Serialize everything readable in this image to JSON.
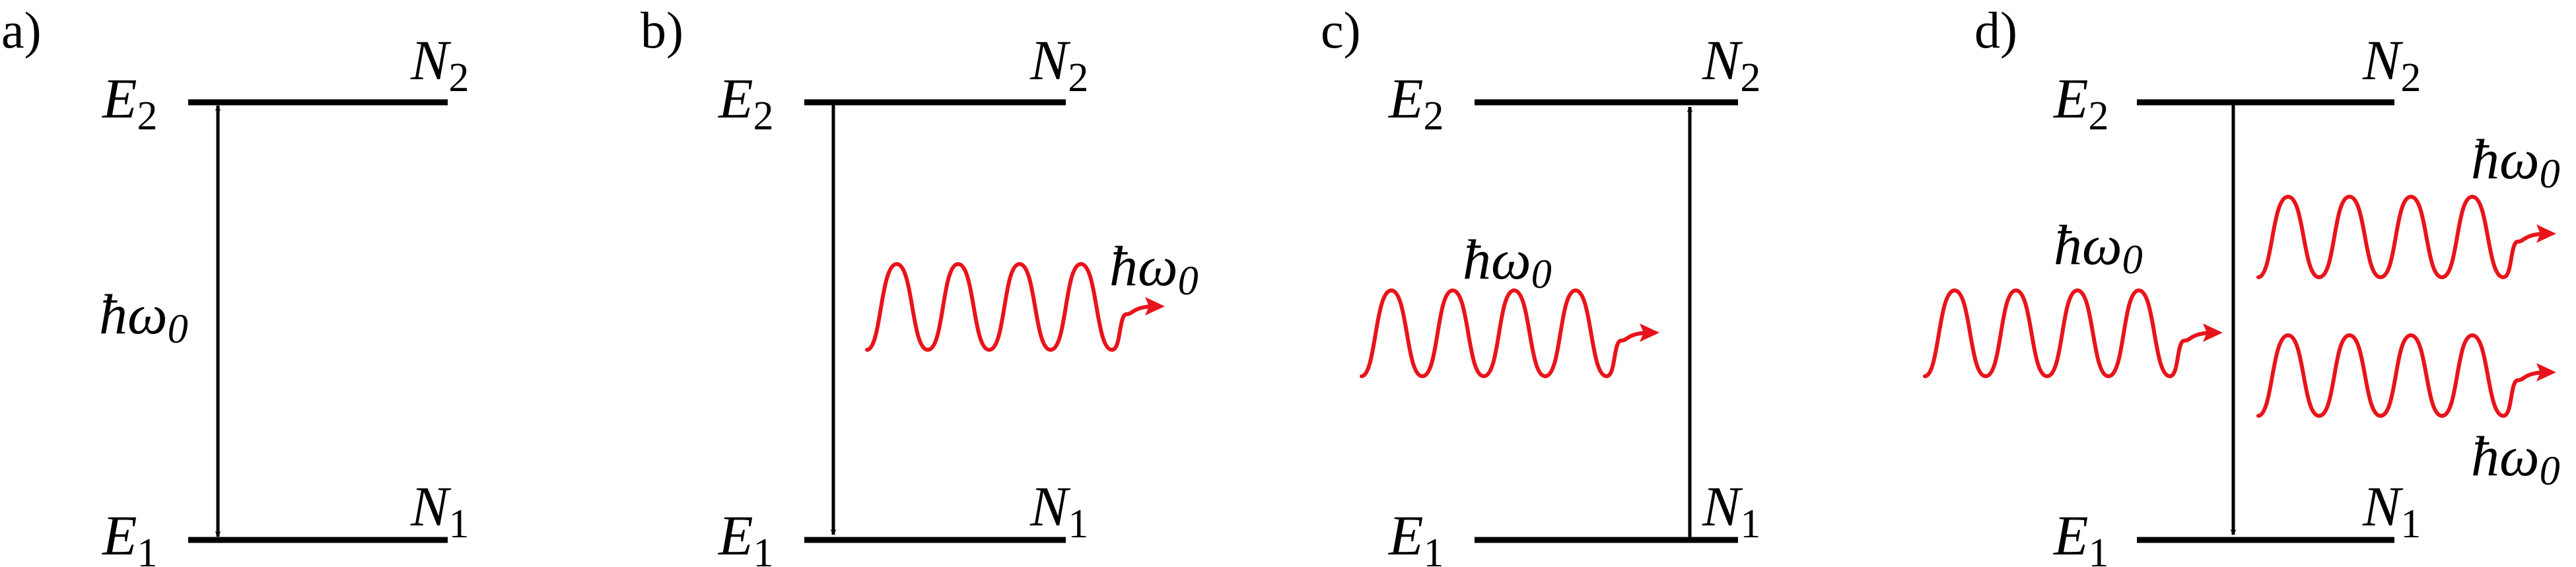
{
  "colors": {
    "line": "#000000",
    "photon": "#e8141b"
  },
  "panels": [
    {
      "label": "a)",
      "upper_energy": {
        "sym": "E",
        "sub": "2"
      },
      "lower_energy": {
        "sym": "E",
        "sub": "1"
      },
      "upper_pop": {
        "sym": "N",
        "sub": "2"
      },
      "lower_pop": {
        "sym": "N",
        "sub": "1"
      },
      "transition": "absorption-emission (double arrow)",
      "photon_label": {
        "sym": "ħω",
        "sub": "0"
      }
    },
    {
      "label": "b)",
      "upper_energy": {
        "sym": "E",
        "sub": "2"
      },
      "lower_energy": {
        "sym": "E",
        "sub": "1"
      },
      "upper_pop": {
        "sym": "N",
        "sub": "2"
      },
      "lower_pop": {
        "sym": "N",
        "sub": "1"
      },
      "transition": "spontaneous emission (down arrow)",
      "photon_label": {
        "sym": "ħω",
        "sub": "0"
      }
    },
    {
      "label": "c)",
      "upper_energy": {
        "sym": "E",
        "sub": "2"
      },
      "lower_energy": {
        "sym": "E",
        "sub": "1"
      },
      "upper_pop": {
        "sym": "N",
        "sub": "2"
      },
      "lower_pop": {
        "sym": "N",
        "sub": "1"
      },
      "transition": "absorption (up arrow)",
      "photon_label": {
        "sym": "ħω",
        "sub": "0"
      }
    },
    {
      "label": "d)",
      "upper_energy": {
        "sym": "E",
        "sub": "2"
      },
      "lower_energy": {
        "sym": "E",
        "sub": "1"
      },
      "upper_pop": {
        "sym": "N",
        "sub": "2"
      },
      "lower_pop": {
        "sym": "N",
        "sub": "1"
      },
      "transition": "stimulated emission (down arrow)",
      "photon_label_in": {
        "sym": "ħω",
        "sub": "0"
      },
      "photon_label_out_top": {
        "sym": "ħω",
        "sub": "0"
      },
      "photon_label_out_bottom": {
        "sym": "ħω",
        "sub": "0"
      }
    }
  ]
}
